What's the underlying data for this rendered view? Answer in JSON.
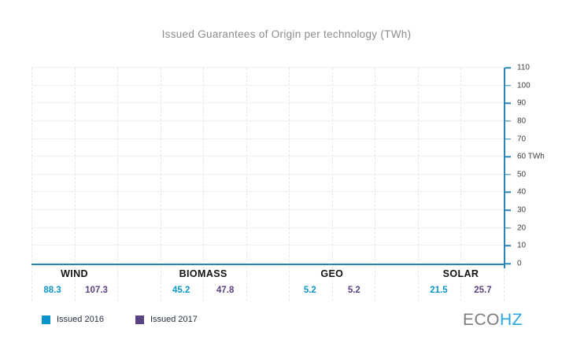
{
  "title": "Issued Guarantees of Origin per technology (TWh)",
  "chart_data": {
    "type": "bar",
    "title": "Issued Guarantees of Origin per technology (TWh)",
    "categories": [
      "WIND",
      "BIOMASS",
      "GEO",
      "SOLAR"
    ],
    "series": [
      {
        "name": "Issued 2016",
        "color": "#0995c9",
        "values": [
          88.3,
          45.2,
          5.2,
          21.5
        ]
      },
      {
        "name": "Issued 2017",
        "color": "#5a4180",
        "values": [
          107.3,
          47.8,
          5.2,
          25.7
        ]
      }
    ],
    "value_labels": [
      [
        "88.3",
        "107.3"
      ],
      [
        "45.2",
        "47.8"
      ],
      [
        "5.2",
        "5.2"
      ],
      [
        "21.5",
        "25.7"
      ]
    ],
    "ylim": [
      0,
      110
    ],
    "ytick_interval": 10,
    "yticks": [
      "0",
      "10",
      "20",
      "30",
      "40",
      "50",
      "60 TWh",
      "70",
      "80",
      "90",
      "100",
      "110"
    ],
    "yaxis_side": "right",
    "axis_color": "#2a85b5",
    "grid": true,
    "legend_position": "bottom-left"
  },
  "legend": {
    "items": [
      {
        "label": "Issued 2016",
        "color": "#0995c9"
      },
      {
        "label": "Issued 2017",
        "color": "#5a4180"
      }
    ]
  },
  "logo": {
    "eco": "ECO",
    "hz": "HZ",
    "eco_color": "#7b7c7f",
    "hz_color": "#29a8e0"
  }
}
